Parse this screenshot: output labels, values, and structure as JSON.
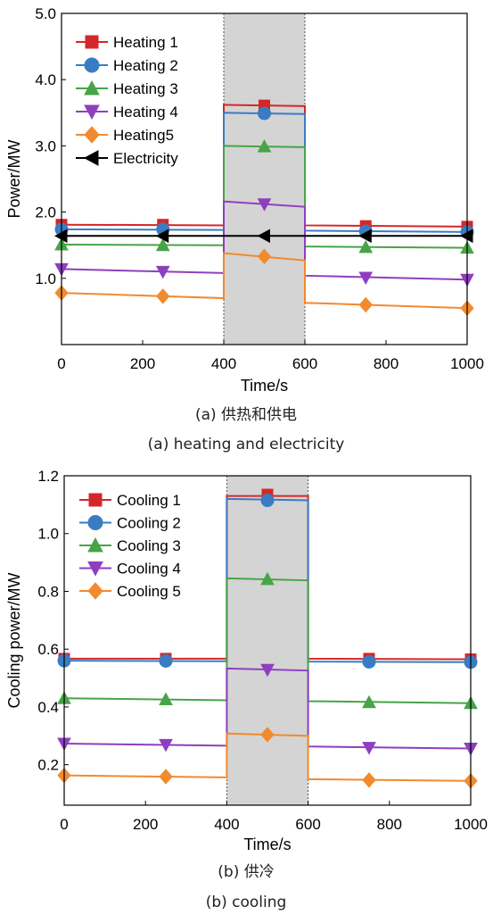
{
  "charts": [
    {
      "caption_cn": "(a) 供热和供电",
      "caption_en": "(a) heating and electricity",
      "chart_data": {
        "type": "line",
        "xlabel": "Time/s",
        "ylabel": "Power/MW",
        "xlim": [
          0,
          1000
        ],
        "ylim": [
          0.0,
          5.0
        ],
        "xticks": [
          0,
          200,
          400,
          600,
          800,
          1000
        ],
        "yticks": [
          1.0,
          2.0,
          3.0,
          4.0,
          5.0
        ],
        "ytick_labels": [
          "1.0",
          "2.0",
          "3.0",
          "4.0",
          "5.0"
        ],
        "shaded_region": [
          400,
          600
        ],
        "shade_color": "#d4d4d4",
        "legend_position": "top-left",
        "series": [
          {
            "name": "Heating 1",
            "color": "#d62728",
            "marker": "square",
            "x": [
              0,
              400,
              400,
              600,
              600,
              1000
            ],
            "y": [
              1.81,
              1.8,
              3.62,
              3.6,
              1.8,
              1.78
            ],
            "mx": [
              0,
              250,
              500,
              750,
              1000
            ],
            "my": [
              1.81,
              1.81,
              3.61,
              1.79,
              1.78
            ]
          },
          {
            "name": "Heating 2",
            "color": "#3a7cc2",
            "marker": "circle",
            "x": [
              0,
              400,
              400,
              600,
              600,
              1000
            ],
            "y": [
              1.74,
              1.73,
              3.5,
              3.48,
              1.72,
              1.7
            ],
            "mx": [
              0,
              250,
              500,
              750,
              1000
            ],
            "my": [
              1.74,
              1.74,
              3.49,
              1.71,
              1.7
            ]
          },
          {
            "name": "Heating 3",
            "color": "#47a447",
            "marker": "triangle-up",
            "x": [
              0,
              400,
              400,
              600,
              600,
              1000
            ],
            "y": [
              1.51,
              1.5,
              3.0,
              2.98,
              1.48,
              1.46
            ],
            "mx": [
              0,
              250,
              500,
              750,
              1000
            ],
            "my": [
              1.51,
              1.5,
              2.99,
              1.47,
              1.46
            ]
          },
          {
            "name": "Heating 4",
            "color": "#8e3fbf",
            "marker": "triangle-down",
            "x": [
              0,
              400,
              400,
              600,
              600,
              1000
            ],
            "y": [
              1.14,
              1.08,
              2.16,
              2.08,
              1.04,
              0.98
            ],
            "mx": [
              0,
              250,
              500,
              750,
              1000
            ],
            "my": [
              1.14,
              1.1,
              2.12,
              1.01,
              0.98
            ]
          },
          {
            "name": "Heating5",
            "color": "#f28a2e",
            "marker": "diamond",
            "x": [
              0,
              400,
              400,
              600,
              600,
              1000
            ],
            "y": [
              0.78,
              0.7,
              1.38,
              1.27,
              0.63,
              0.55
            ],
            "mx": [
              0,
              250,
              500,
              750,
              1000
            ],
            "my": [
              0.78,
              0.73,
              1.33,
              0.6,
              0.55
            ]
          },
          {
            "name": "Electricity",
            "color": "#000000",
            "marker": "triangle-left",
            "x": [
              0,
              1000
            ],
            "y": [
              1.64,
              1.64
            ],
            "mx": [
              0,
              250,
              500,
              750,
              1000
            ],
            "my": [
              1.64,
              1.64,
              1.64,
              1.64,
              1.64
            ]
          }
        ]
      }
    },
    {
      "caption_cn": "(b) 供冷",
      "caption_en": "(b) cooling",
      "chart_data": {
        "type": "line",
        "xlabel": "Time/s",
        "ylabel": "Cooling power/MW",
        "xlim": [
          0,
          1000
        ],
        "ylim": [
          0.06,
          1.2
        ],
        "xticks": [
          0,
          200,
          400,
          600,
          800,
          1000
        ],
        "yticks": [
          0.2,
          0.4,
          0.6,
          0.8,
          1.0,
          1.2
        ],
        "ytick_labels": [
          "0.2",
          "0.4",
          "0.6",
          "0.8",
          "1.0",
          "1.2"
        ],
        "shaded_region": [
          400,
          600
        ],
        "shade_color": "#d4d4d4",
        "legend_position": "top-left",
        "series": [
          {
            "name": "Cooling 1",
            "color": "#d62728",
            "marker": "square",
            "x": [
              0,
              400,
              400,
              600,
              600,
              1000
            ],
            "y": [
              0.567,
              0.567,
              1.13,
              1.13,
              0.567,
              0.565
            ],
            "mx": [
              0,
              250,
              500,
              750,
              1000
            ],
            "my": [
              0.567,
              0.567,
              1.135,
              0.567,
              0.565
            ]
          },
          {
            "name": "Cooling 2",
            "color": "#3a7cc2",
            "marker": "circle",
            "x": [
              0,
              400,
              400,
              600,
              600,
              1000
            ],
            "y": [
              0.56,
              0.558,
              1.12,
              1.115,
              0.557,
              0.555
            ],
            "mx": [
              0,
              250,
              500,
              750,
              1000
            ],
            "my": [
              0.56,
              0.559,
              1.115,
              0.556,
              0.555
            ]
          },
          {
            "name": "Cooling 3",
            "color": "#47a447",
            "marker": "triangle-up",
            "x": [
              0,
              400,
              400,
              600,
              600,
              1000
            ],
            "y": [
              0.43,
              0.423,
              0.845,
              0.838,
              0.42,
              0.413
            ],
            "mx": [
              0,
              250,
              500,
              750,
              1000
            ],
            "my": [
              0.43,
              0.426,
              0.842,
              0.416,
              0.413
            ]
          },
          {
            "name": "Cooling 4",
            "color": "#8e3fbf",
            "marker": "triangle-down",
            "x": [
              0,
              400,
              400,
              600,
              600,
              1000
            ],
            "y": [
              0.273,
              0.266,
              0.533,
              0.526,
              0.263,
              0.256
            ],
            "mx": [
              0,
              250,
              500,
              750,
              1000
            ],
            "my": [
              0.273,
              0.269,
              0.529,
              0.259,
              0.256
            ]
          },
          {
            "name": "Cooling 5",
            "color": "#f28a2e",
            "marker": "diamond",
            "x": [
              0,
              400,
              400,
              600,
              600,
              1000
            ],
            "y": [
              0.163,
              0.156,
              0.308,
              0.3,
              0.15,
              0.144
            ],
            "mx": [
              0,
              250,
              500,
              750,
              1000
            ],
            "my": [
              0.163,
              0.159,
              0.304,
              0.147,
              0.144
            ]
          }
        ]
      }
    }
  ]
}
